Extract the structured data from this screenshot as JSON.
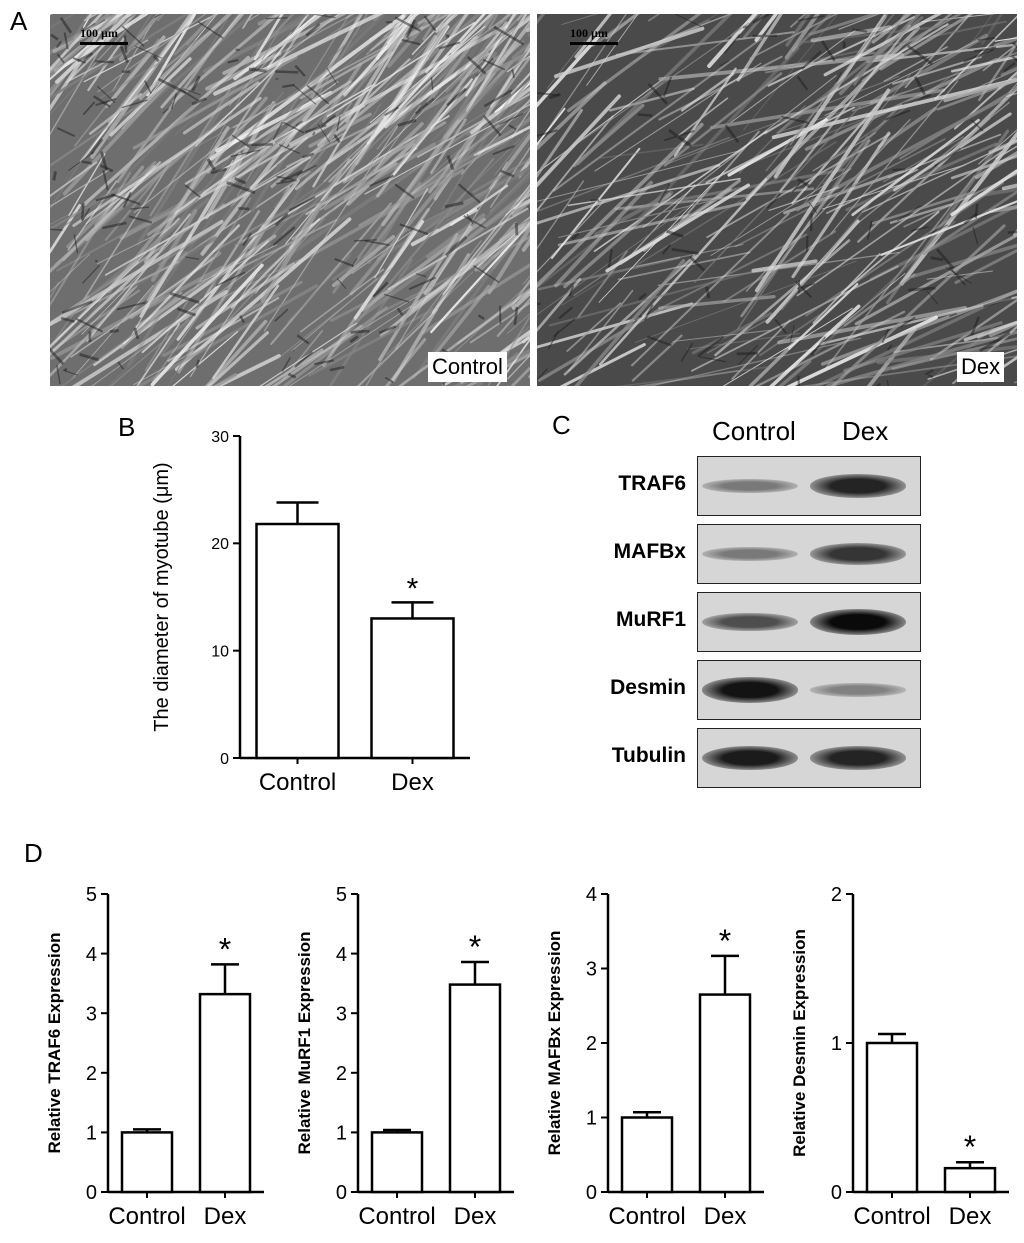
{
  "panels": {
    "A": {
      "letter": "A",
      "images": [
        {
          "label": "Control",
          "scale_bar": "100 µm"
        },
        {
          "label": "Dex",
          "scale_bar": "100 µm"
        }
      ]
    },
    "B": {
      "letter": "B"
    },
    "C": {
      "letter": "C",
      "lanes": [
        "Control",
        "Dex"
      ],
      "rows": [
        {
          "name": "TRAF6",
          "intensity": [
            0.35,
            0.85
          ]
        },
        {
          "name": "MAFBx",
          "intensity": [
            0.35,
            0.75
          ]
        },
        {
          "name": "MuRF1",
          "intensity": [
            0.6,
            1.0
          ]
        },
        {
          "name": "Desmin",
          "intensity": [
            0.95,
            0.3
          ]
        },
        {
          "name": "Tubulin",
          "intensity": [
            0.9,
            0.85
          ]
        }
      ]
    },
    "D": {
      "letter": "D"
    }
  },
  "chart_data": [
    {
      "id": "B",
      "type": "bar",
      "categories": [
        "Control",
        "Dex"
      ],
      "values": [
        21.8,
        13.0
      ],
      "errors": [
        2.0,
        1.5
      ],
      "significance": [
        "",
        "*"
      ],
      "ylabel": "The diameter of myotube (μm)",
      "ylim": [
        0,
        30
      ],
      "yticks": [
        0,
        10,
        20,
        30
      ]
    },
    {
      "id": "D1",
      "type": "bar",
      "categories": [
        "Control",
        "Dex"
      ],
      "values": [
        1.0,
        3.32
      ],
      "errors": [
        0.05,
        0.5
      ],
      "significance": [
        "",
        "*"
      ],
      "ylabel": "Relative TRAF6 Expression",
      "ylim": [
        0,
        5
      ],
      "yticks": [
        0,
        1,
        2,
        3,
        4,
        5
      ]
    },
    {
      "id": "D2",
      "type": "bar",
      "categories": [
        "Control",
        "Dex"
      ],
      "values": [
        1.0,
        3.48
      ],
      "errors": [
        0.04,
        0.38
      ],
      "significance": [
        "",
        "*"
      ],
      "ylabel": "Relative MuRF1 Expression",
      "ylim": [
        0,
        5
      ],
      "yticks": [
        0,
        1,
        2,
        3,
        4,
        5
      ]
    },
    {
      "id": "D3",
      "type": "bar",
      "categories": [
        "Control",
        "Dex"
      ],
      "values": [
        1.0,
        2.65
      ],
      "errors": [
        0.07,
        0.52
      ],
      "significance": [
        "",
        "*"
      ],
      "ylabel": "Relative MAFBx Expression",
      "ylim": [
        0,
        4
      ],
      "yticks": [
        0,
        1,
        2,
        3,
        4
      ]
    },
    {
      "id": "D4",
      "type": "bar",
      "categories": [
        "Control",
        "Dex"
      ],
      "values": [
        1.0,
        0.16
      ],
      "errors": [
        0.06,
        0.04
      ],
      "significance": [
        "",
        "*"
      ],
      "ylabel": "Relative Desmin Expression",
      "ylim": [
        0,
        2
      ],
      "yticks": [
        0,
        1,
        2
      ]
    }
  ]
}
